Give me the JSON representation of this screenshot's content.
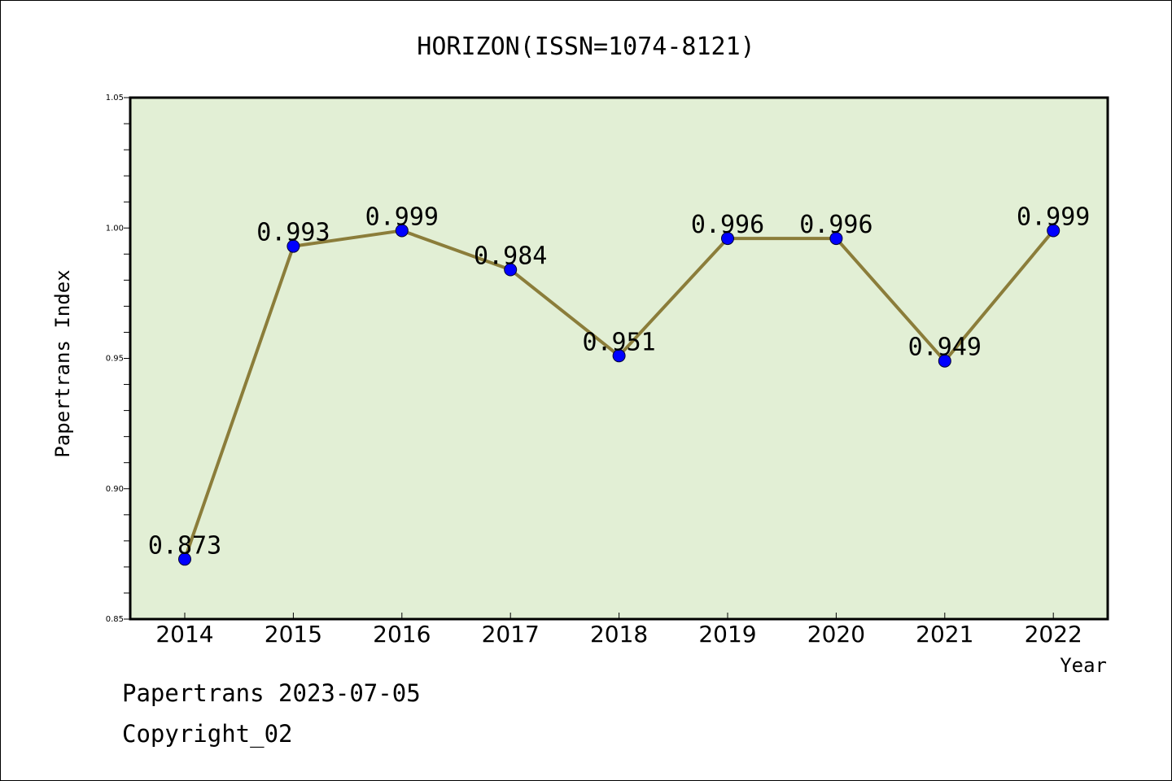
{
  "chart_data": {
    "type": "line",
    "title": "HORIZON(ISSN=1074-8121)",
    "xlabel": "Year",
    "ylabel": "Papertrans Index",
    "categories": [
      "2014",
      "2015",
      "2016",
      "2017",
      "2018",
      "2019",
      "2020",
      "2021",
      "2022"
    ],
    "values": [
      0.873,
      0.993,
      0.999,
      0.984,
      0.951,
      0.996,
      0.996,
      0.949,
      0.999
    ],
    "data_labels": [
      "0.873",
      "0.993",
      "0.999",
      "0.984",
      "0.951",
      "0.996",
      "0.996",
      "0.949",
      "0.999"
    ],
    "ylim": [
      0.85,
      1.05
    ],
    "yticks": [
      "0.85",
      "0.90",
      "0.95",
      "1.00",
      "1.05"
    ],
    "grid": false,
    "legend": "none",
    "colors": {
      "plot_background": "#e2efd5",
      "line": "#8b7d3a",
      "marker": "#0000ff"
    }
  },
  "footer": {
    "line1": "Papertrans 2023-07-05",
    "line2": "Copyright_02"
  }
}
